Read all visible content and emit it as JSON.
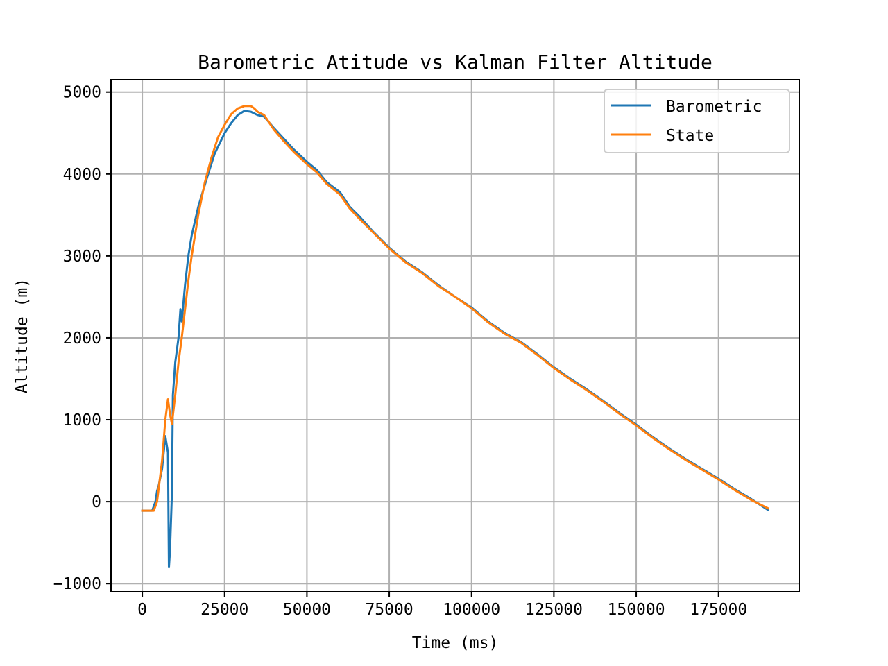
{
  "chart_data": {
    "type": "line",
    "title": "Barometric Atitude vs Kalman Filter Altitude",
    "xlabel": "Time (ms)",
    "ylabel": "Altitude (m)",
    "xlim": [
      -9500,
      199500
    ],
    "ylim": [
      -1100,
      5150
    ],
    "xticks": [
      0,
      25000,
      50000,
      75000,
      100000,
      125000,
      150000,
      175000
    ],
    "xtick_labels": [
      "0",
      "25000",
      "50000",
      "75000",
      "100000",
      "125000",
      "150000",
      "175000"
    ],
    "yticks": [
      -1000,
      0,
      1000,
      2000,
      3000,
      4000,
      5000
    ],
    "ytick_labels": [
      "−1000",
      "0",
      "1000",
      "2000",
      "3000",
      "4000",
      "5000"
    ],
    "grid": true,
    "legend_position": "upper right",
    "series": [
      {
        "name": "Barometric",
        "color": "#1f77b4",
        "points": [
          [
            0,
            -110
          ],
          [
            3000,
            -110
          ],
          [
            4000,
            0
          ],
          [
            4500,
            130
          ],
          [
            5000,
            200
          ],
          [
            6000,
            400
          ],
          [
            7000,
            800
          ],
          [
            7800,
            600
          ],
          [
            8100,
            -800
          ],
          [
            8400,
            -600
          ],
          [
            9000,
            100
          ],
          [
            9300,
            1300
          ],
          [
            10000,
            1700
          ],
          [
            11000,
            2000
          ],
          [
            11600,
            2350
          ],
          [
            12000,
            2200
          ],
          [
            13000,
            2650
          ],
          [
            14000,
            3000
          ],
          [
            15000,
            3250
          ],
          [
            17000,
            3600
          ],
          [
            20000,
            4000
          ],
          [
            22000,
            4250
          ],
          [
            25000,
            4500
          ],
          [
            27000,
            4620
          ],
          [
            29000,
            4720
          ],
          [
            31000,
            4770
          ],
          [
            33000,
            4760
          ],
          [
            35000,
            4720
          ],
          [
            37000,
            4700
          ],
          [
            40000,
            4560
          ],
          [
            43000,
            4430
          ],
          [
            46000,
            4300
          ],
          [
            50000,
            4150
          ],
          [
            53000,
            4050
          ],
          [
            56000,
            3900
          ],
          [
            60000,
            3780
          ],
          [
            63000,
            3600
          ],
          [
            66000,
            3480
          ],
          [
            70000,
            3300
          ],
          [
            75000,
            3100
          ],
          [
            80000,
            2930
          ],
          [
            85000,
            2800
          ],
          [
            90000,
            2640
          ],
          [
            95000,
            2500
          ],
          [
            100000,
            2370
          ],
          [
            105000,
            2200
          ],
          [
            110000,
            2060
          ],
          [
            115000,
            1950
          ],
          [
            120000,
            1800
          ],
          [
            125000,
            1640
          ],
          [
            130000,
            1500
          ],
          [
            135000,
            1370
          ],
          [
            140000,
            1230
          ],
          [
            145000,
            1080
          ],
          [
            150000,
            940
          ],
          [
            155000,
            790
          ],
          [
            160000,
            650
          ],
          [
            165000,
            520
          ],
          [
            170000,
            400
          ],
          [
            175000,
            280
          ],
          [
            180000,
            150
          ],
          [
            185000,
            30
          ],
          [
            190000,
            -100
          ]
        ]
      },
      {
        "name": "State",
        "color": "#ff7f0e",
        "points": [
          [
            0,
            -110
          ],
          [
            3500,
            -110
          ],
          [
            4500,
            0
          ],
          [
            6000,
            500
          ],
          [
            7000,
            1000
          ],
          [
            7800,
            1250
          ],
          [
            8500,
            1050
          ],
          [
            9000,
            950
          ],
          [
            10000,
            1300
          ],
          [
            11000,
            1700
          ],
          [
            12000,
            2000
          ],
          [
            13000,
            2350
          ],
          [
            14000,
            2700
          ],
          [
            15000,
            3000
          ],
          [
            17000,
            3500
          ],
          [
            19000,
            3900
          ],
          [
            21000,
            4200
          ],
          [
            23000,
            4450
          ],
          [
            25000,
            4600
          ],
          [
            27000,
            4730
          ],
          [
            29000,
            4800
          ],
          [
            31000,
            4830
          ],
          [
            33000,
            4830
          ],
          [
            34000,
            4800
          ],
          [
            35000,
            4760
          ],
          [
            37000,
            4720
          ],
          [
            40000,
            4540
          ],
          [
            43000,
            4400
          ],
          [
            46000,
            4270
          ],
          [
            50000,
            4120
          ],
          [
            53000,
            4020
          ],
          [
            56000,
            3880
          ],
          [
            60000,
            3750
          ],
          [
            63000,
            3580
          ],
          [
            66000,
            3450
          ],
          [
            70000,
            3290
          ],
          [
            75000,
            3090
          ],
          [
            80000,
            2920
          ],
          [
            85000,
            2790
          ],
          [
            90000,
            2630
          ],
          [
            95000,
            2500
          ],
          [
            100000,
            2360
          ],
          [
            105000,
            2190
          ],
          [
            110000,
            2050
          ],
          [
            115000,
            1940
          ],
          [
            120000,
            1790
          ],
          [
            125000,
            1630
          ],
          [
            130000,
            1490
          ],
          [
            135000,
            1360
          ],
          [
            140000,
            1220
          ],
          [
            145000,
            1070
          ],
          [
            150000,
            930
          ],
          [
            155000,
            780
          ],
          [
            160000,
            640
          ],
          [
            165000,
            510
          ],
          [
            170000,
            390
          ],
          [
            175000,
            270
          ],
          [
            180000,
            140
          ],
          [
            185000,
            20
          ],
          [
            190000,
            -80
          ]
        ]
      }
    ]
  }
}
